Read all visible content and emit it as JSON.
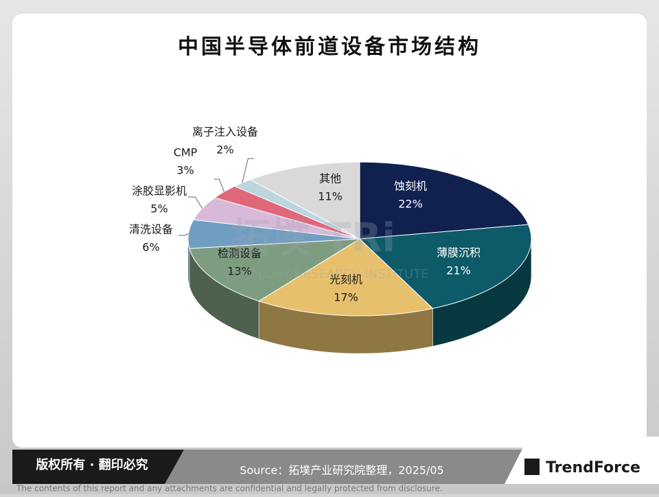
{
  "chart_data": {
    "type": "pie",
    "title": "中国半导体前道设备市场结构",
    "categories": [
      "蚀刻机",
      "薄膜沉积",
      "光刻机",
      "检测设备",
      "清洗设备",
      "涂胶显影机",
      "CMP",
      "离子注入设备",
      "其他"
    ],
    "values": [
      22,
      21,
      17,
      13,
      6,
      5,
      3,
      2,
      11
    ],
    "value_labels": [
      "22%",
      "21%",
      "17%",
      "13%",
      "6%",
      "5%",
      "3%",
      "2%",
      "11%"
    ],
    "colors": [
      "#10204f",
      "#0d5a68",
      "#e6c06c",
      "#7e9d80",
      "#6f9ec0",
      "#d9b9d9",
      "#e0677a",
      "#bcd6e0",
      "#d9d9d9"
    ]
  },
  "watermark": {
    "logo": "拓墣 TRi",
    "name": "TOPOLOGY RESEARCH INSTITUTE"
  },
  "footer": {
    "copyright": "版权所有 · 翻印必究",
    "source": "Source：拓墣产业研究院整理，2025/05",
    "brand": "TrendForce",
    "disclaimer": "The contents of this report and any attachments are confidential and legally protected from disclosure."
  }
}
